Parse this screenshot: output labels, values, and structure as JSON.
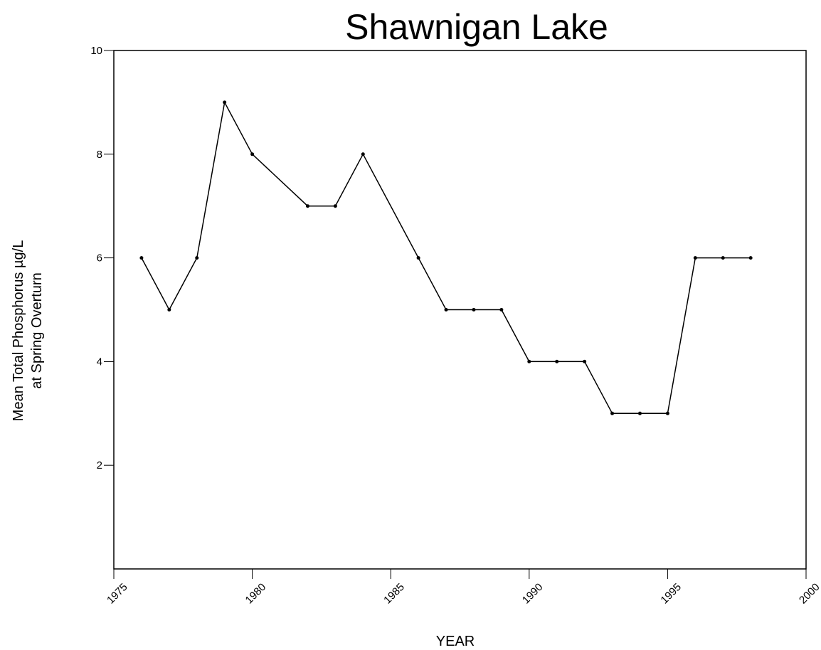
{
  "chart_data": {
    "type": "line",
    "title": "Shawnigan Lake",
    "xlabel": "YEAR",
    "ylabel": [
      "Mean Total Phosphorus µg/L",
      "at Spring Overturn"
    ],
    "x": [
      1976,
      1977,
      1978,
      1979,
      1980,
      1982,
      1983,
      1984,
      1986,
      1987,
      1988,
      1989,
      1990,
      1991,
      1992,
      1993,
      1994,
      1995,
      1996,
      1997,
      1998
    ],
    "series": [
      {
        "color": "#000000",
        "values": [
          6,
          5,
          6,
          9,
          8,
          7,
          7,
          8,
          6,
          5,
          5,
          5,
          4,
          4,
          4,
          3,
          3,
          3,
          6,
          6,
          6
        ]
      }
    ],
    "xlim": [
      1975,
      2000
    ],
    "xticks": [
      1975,
      1980,
      1985,
      1990,
      1995,
      2000
    ],
    "ylim": [
      0,
      10
    ],
    "yticks": [
      2,
      4,
      6,
      8,
      10
    ]
  }
}
